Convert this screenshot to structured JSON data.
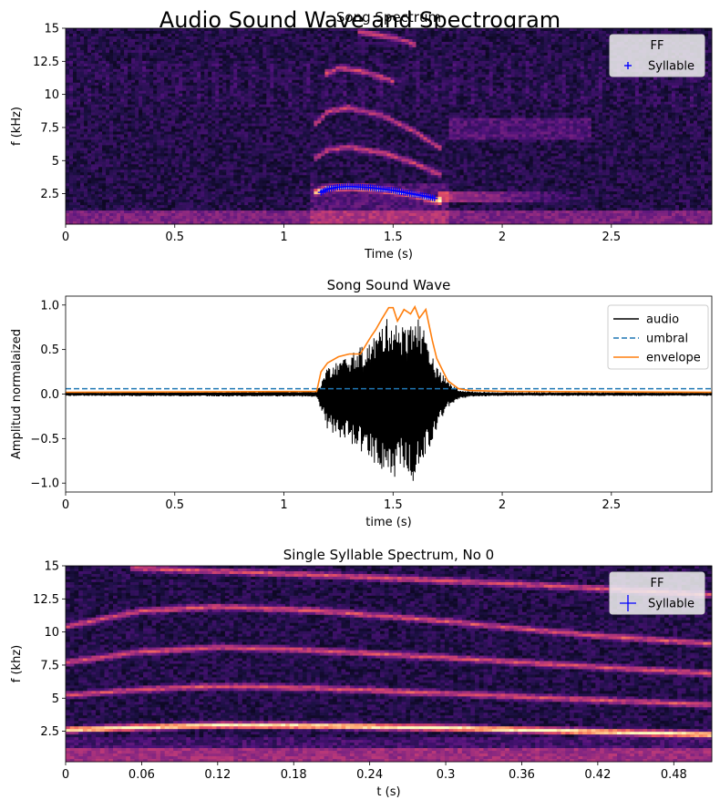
{
  "figure": {
    "suptitle": "Audio Sound Wave and Spectrogram"
  },
  "chart_data": [
    {
      "type": "heatmap",
      "subtype": "spectrogram",
      "title": "Song Spectrum",
      "xlabel": "Time (s)",
      "ylabel": "f (kHz)",
      "xlim": [
        0,
        2.96
      ],
      "ylim": [
        0.2,
        15
      ],
      "xticks": [
        0,
        0.5,
        1,
        1.5,
        2,
        2.5
      ],
      "xtick_labels": [
        "0",
        "0.5",
        "1",
        "1.5",
        "2",
        "2.5"
      ],
      "yticks": [
        2.5,
        5,
        7.5,
        10,
        12.5,
        15
      ],
      "ytick_labels": [
        "2.5",
        "5",
        "7.5",
        "10",
        "12.5",
        "15"
      ],
      "colormap": "magma",
      "legend": {
        "title": "FF",
        "placement": "top-right",
        "entries": [
          {
            "label": "Syllable",
            "marker": "+",
            "color": "#0000ff"
          }
        ]
      },
      "syllable_ff": {
        "time": [
          1.17,
          1.2,
          1.25,
          1.3,
          1.35,
          1.4,
          1.45,
          1.5,
          1.55,
          1.6,
          1.65,
          1.69
        ],
        "freq_khz": [
          2.6,
          2.85,
          3.0,
          3.05,
          3.0,
          2.95,
          2.85,
          2.75,
          2.6,
          2.45,
          2.3,
          2.15
        ]
      },
      "harmonic_traces": [
        {
          "time": [
            1.15,
            1.2,
            1.3,
            1.45,
            1.6,
            1.72
          ],
          "freq_khz": [
            2.6,
            2.9,
            3.0,
            2.8,
            2.4,
            1.9
          ]
        },
        {
          "time": [
            1.15,
            1.2,
            1.3,
            1.45,
            1.6,
            1.72
          ],
          "freq_khz": [
            5.2,
            5.8,
            6.0,
            5.6,
            4.8,
            3.9
          ]
        },
        {
          "time": [
            1.15,
            1.2,
            1.3,
            1.45,
            1.6,
            1.72
          ],
          "freq_khz": [
            7.8,
            8.7,
            9.0,
            8.4,
            7.2,
            5.9
          ]
        },
        {
          "time": [
            1.2,
            1.25,
            1.35,
            1.5
          ],
          "freq_khz": [
            11.6,
            12.0,
            11.8,
            11.0
          ]
        },
        {
          "time": [
            1.35,
            1.5,
            1.6
          ],
          "freq_khz": [
            14.7,
            14.3,
            13.8
          ]
        }
      ],
      "noise_band": {
        "time": [
          1.7,
          2.4
        ],
        "freq_khz": [
          1.8,
          2.7
        ]
      },
      "faint_band": {
        "time": [
          1.75,
          2.4
        ],
        "freq_khz": [
          6.6,
          8.2
        ]
      }
    },
    {
      "type": "line",
      "title": "Song Sound Wave",
      "xlabel": "time (s)",
      "ylabel": "Amplitud normalaized",
      "xlim": [
        0,
        2.96
      ],
      "ylim": [
        -1.1,
        1.1
      ],
      "xticks": [
        0,
        0.5,
        1,
        1.5,
        2,
        2.5
      ],
      "xtick_labels": [
        "0",
        "0.5",
        "1",
        "1.5",
        "2",
        "2.5"
      ],
      "yticks": [
        -1.0,
        -0.5,
        0.0,
        0.5,
        1.0
      ],
      "ytick_labels": [
        "−1.0",
        "−0.5",
        "0.0",
        "0.5",
        "1.0"
      ],
      "legend": {
        "placement": "top-right",
        "entries": [
          "audio",
          "umbral",
          "envelope"
        ]
      },
      "series": [
        {
          "name": "audio",
          "color": "#000000",
          "style": "solid",
          "x": [
            0,
            1.15,
            1.2,
            1.3,
            1.4,
            1.45,
            1.5,
            1.55,
            1.6,
            1.65,
            1.7,
            1.75,
            1.8,
            1.85,
            2.0,
            2.96
          ],
          "upper": [
            0.02,
            0.03,
            0.3,
            0.45,
            0.6,
            0.8,
            0.9,
            0.75,
            0.95,
            0.7,
            0.3,
            0.15,
            0.05,
            0.03,
            0.02,
            0.02
          ],
          "lower": [
            -0.02,
            -0.03,
            -0.4,
            -0.55,
            -0.75,
            -0.9,
            -0.95,
            -0.85,
            -1.0,
            -0.7,
            -0.4,
            -0.15,
            -0.06,
            -0.03,
            -0.02,
            -0.02
          ]
        },
        {
          "name": "umbral",
          "color": "#1f77b4",
          "style": "dashed",
          "value": 0.06
        },
        {
          "name": "envelope",
          "color": "#ff7f0e",
          "style": "solid",
          "x": [
            0,
            1.15,
            1.17,
            1.2,
            1.25,
            1.3,
            1.35,
            1.4,
            1.42,
            1.45,
            1.48,
            1.5,
            1.52,
            1.55,
            1.58,
            1.6,
            1.62,
            1.65,
            1.68,
            1.7,
            1.75,
            1.8,
            1.85,
            2.0,
            2.96
          ],
          "y": [
            0.02,
            0.03,
            0.25,
            0.35,
            0.42,
            0.45,
            0.45,
            0.65,
            0.72,
            0.85,
            0.97,
            0.97,
            0.82,
            0.95,
            0.9,
            0.98,
            0.85,
            0.95,
            0.6,
            0.4,
            0.15,
            0.06,
            0.04,
            0.03,
            0.02
          ]
        }
      ]
    },
    {
      "type": "heatmap",
      "subtype": "spectrogram",
      "title": "Single Syllable Spectrum, No 0",
      "xlabel": "t (s)",
      "ylabel": "f (khz)",
      "xlim": [
        0,
        0.51
      ],
      "ylim": [
        0.2,
        15
      ],
      "xticks": [
        0,
        0.06,
        0.12,
        0.18,
        0.24,
        0.3,
        0.36,
        0.42,
        0.48
      ],
      "xtick_labels": [
        "0",
        "0.06",
        "0.12",
        "0.18",
        "0.24",
        "0.3",
        "0.36",
        "0.42",
        "0.48"
      ],
      "yticks": [
        2.5,
        5,
        7.5,
        10,
        12.5,
        15
      ],
      "ytick_labels": [
        "2.5",
        "5",
        "7.5",
        "10",
        "12.5",
        "15"
      ],
      "colormap": "magma",
      "legend": {
        "title": "FF",
        "placement": "top-right",
        "entries": [
          {
            "label": "Syllable",
            "marker": "+",
            "color": "#0000ff"
          }
        ]
      },
      "harmonic_traces": [
        {
          "time": [
            0,
            0.06,
            0.12,
            0.2,
            0.3,
            0.42,
            0.51
          ],
          "freq_khz": [
            2.6,
            2.8,
            2.95,
            2.9,
            2.75,
            2.45,
            2.25
          ]
        },
        {
          "time": [
            0,
            0.06,
            0.12,
            0.2,
            0.3,
            0.42,
            0.51
          ],
          "freq_khz": [
            5.2,
            5.65,
            5.9,
            5.75,
            5.35,
            4.85,
            4.5
          ]
        },
        {
          "time": [
            0,
            0.06,
            0.12,
            0.2,
            0.3,
            0.42,
            0.51
          ],
          "freq_khz": [
            7.7,
            8.5,
            8.85,
            8.6,
            8.05,
            7.35,
            6.85
          ]
        },
        {
          "time": [
            0,
            0.06,
            0.12,
            0.2,
            0.3,
            0.42,
            0.51
          ],
          "freq_khz": [
            10.4,
            11.6,
            11.9,
            11.6,
            10.8,
            9.7,
            9.1
          ]
        },
        {
          "time": [
            0.06,
            0.2,
            0.36,
            0.51
          ],
          "freq_khz": [
            14.8,
            14.3,
            13.6,
            12.8
          ]
        }
      ]
    }
  ]
}
